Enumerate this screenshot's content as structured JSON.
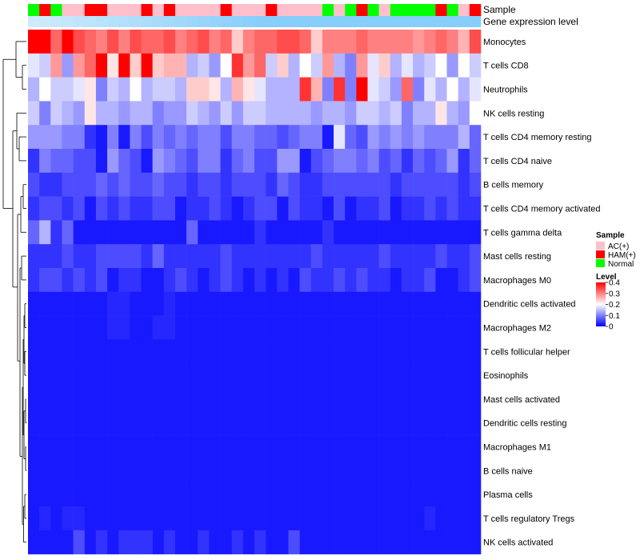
{
  "chart_data": {
    "type": "heatmap",
    "annotation_track_labels": {
      "sample": "Sample",
      "gene_expression": "Gene expression level"
    },
    "row_labels": [
      "Monocytes",
      "T cells CD8",
      "Neutrophils",
      "NK cells resting",
      "T cells CD4 memory resting",
      "T cells CD4 naive",
      "B cells memory",
      "T cells CD4 memory activated",
      "T cells gamma delta",
      "Mast cells resting",
      "Macrophages M0",
      "Dendritic cells activated",
      "Macrophages M2",
      "T cells follicular helper",
      "Eosinophils",
      "Mast cells activated",
      "Dendritic cells resting",
      "Macrophages M1",
      "B cells naive",
      "Plasma cells",
      "T cells regulatory  Tregs",
      "NK cells activated"
    ],
    "sample_groups": [
      "Normal",
      "HAM(+)",
      "Normal",
      "AC(+)",
      "AC(+)",
      "HAM(+)",
      "HAM(+)",
      "AC(+)",
      "AC(+)",
      "AC(+)",
      "HAM(+)",
      "AC(+)",
      "HAM(+)",
      "AC(+)",
      "AC(+)",
      "AC(+)",
      "AC(+)",
      "HAM(+)",
      "AC(+)",
      "AC(+)",
      "AC(+)",
      "HAM(+)",
      "AC(+)",
      "AC(+)",
      "AC(+)",
      "AC(+)",
      "Normal",
      "AC(+)",
      "Normal",
      "HAM(+)",
      "Normal",
      "AC(+)",
      "Normal",
      "Normal",
      "Normal",
      "Normal",
      "HAM(+)",
      "Normal",
      "AC(+)",
      "HAM(+)"
    ],
    "values": [
      [
        0.4,
        0.4,
        0.32,
        0.4,
        0.34,
        0.32,
        0.3,
        0.34,
        0.3,
        0.34,
        0.32,
        0.32,
        0.34,
        0.3,
        0.32,
        0.34,
        0.3,
        0.32,
        0.24,
        0.3,
        0.32,
        0.32,
        0.34,
        0.34,
        0.32,
        0.24,
        0.3,
        0.3,
        0.3,
        0.32,
        0.3,
        0.3,
        0.3,
        0.3,
        0.28,
        0.3,
        0.32,
        0.3,
        0.26,
        0.34
      ],
      [
        0.18,
        0.16,
        0.28,
        0.12,
        0.28,
        0.32,
        0.4,
        0.22,
        0.4,
        0.24,
        0.4,
        0.24,
        0.26,
        0.26,
        0.14,
        0.16,
        0.12,
        0.2,
        0.36,
        0.28,
        0.32,
        0.16,
        0.24,
        0.14,
        0.2,
        0.16,
        0.28,
        0.14,
        0.1,
        0.28,
        0.18,
        0.24,
        0.14,
        0.18,
        0.14,
        0.16,
        0.2,
        0.12,
        0.2,
        0.16
      ],
      [
        0.14,
        0.2,
        0.16,
        0.16,
        0.18,
        0.22,
        0.1,
        0.16,
        0.14,
        0.2,
        0.14,
        0.16,
        0.16,
        0.14,
        0.24,
        0.24,
        0.22,
        0.14,
        0.26,
        0.22,
        0.18,
        0.14,
        0.14,
        0.14,
        0.36,
        0.26,
        0.1,
        0.36,
        0.1,
        0.42,
        0.18,
        0.16,
        0.12,
        0.32,
        0.1,
        0.18,
        0.14,
        0.2,
        0.14,
        0.18
      ],
      [
        0.16,
        0.1,
        0.16,
        0.14,
        0.12,
        0.22,
        0.14,
        0.14,
        0.12,
        0.14,
        0.14,
        0.1,
        0.12,
        0.12,
        0.16,
        0.14,
        0.12,
        0.16,
        0.12,
        0.16,
        0.16,
        0.14,
        0.14,
        0.14,
        0.14,
        0.12,
        0.14,
        0.14,
        0.12,
        0.16,
        0.16,
        0.14,
        0.16,
        0.1,
        0.14,
        0.14,
        0.22,
        0.14,
        0.12,
        0.2
      ],
      [
        0.12,
        0.12,
        0.12,
        0.1,
        0.1,
        0.04,
        0.02,
        0.1,
        0.02,
        0.1,
        0.06,
        0.1,
        0.08,
        0.1,
        0.08,
        0.1,
        0.1,
        0.06,
        0.1,
        0.1,
        0.08,
        0.08,
        0.06,
        0.08,
        0.1,
        0.1,
        0.02,
        0.18,
        0.08,
        0.06,
        0.12,
        0.1,
        0.12,
        0.1,
        0.12,
        0.1,
        0.1,
        0.1,
        0.14,
        0.08
      ],
      [
        0.04,
        0.1,
        0.08,
        0.08,
        0.06,
        0.06,
        0.02,
        0.12,
        0.08,
        0.06,
        0.02,
        0.12,
        0.1,
        0.08,
        0.06,
        0.1,
        0.1,
        0.04,
        0.08,
        0.1,
        0.06,
        0.06,
        0.12,
        0.12,
        0.02,
        0.06,
        0.08,
        0.1,
        0.1,
        0.08,
        0.1,
        0.06,
        0.08,
        0.04,
        0.08,
        0.06,
        0.08,
        0.12,
        0.04,
        0.08
      ],
      [
        0.06,
        0.04,
        0.04,
        0.06,
        0.06,
        0.06,
        0.08,
        0.06,
        0.08,
        0.06,
        0.06,
        0.08,
        0.06,
        0.06,
        0.04,
        0.06,
        0.06,
        0.04,
        0.06,
        0.06,
        0.06,
        0.04,
        0.08,
        0.06,
        0.04,
        0.04,
        0.06,
        0.06,
        0.06,
        0.06,
        0.06,
        0.06,
        0.04,
        0.06,
        0.06,
        0.06,
        0.06,
        0.06,
        0.04,
        0.06
      ],
      [
        0.04,
        0.06,
        0.06,
        0.04,
        0.06,
        0.02,
        0.06,
        0.04,
        0.06,
        0.04,
        0.04,
        0.06,
        0.06,
        0.02,
        0.04,
        0.04,
        0.06,
        0.04,
        0.02,
        0.04,
        0.06,
        0.06,
        0.02,
        0.06,
        0.04,
        0.04,
        0.02,
        0.06,
        0.02,
        0.04,
        0.04,
        0.06,
        0.02,
        0.04,
        0.04,
        0.06,
        0.04,
        0.06,
        0.04,
        0.04
      ],
      [
        0.08,
        0.14,
        0.04,
        0.08,
        0.02,
        0.02,
        0.02,
        0.02,
        0.02,
        0.02,
        0.02,
        0.02,
        0.02,
        0.02,
        0.08,
        0.02,
        0.02,
        0.02,
        0.02,
        0.02,
        0.04,
        0.02,
        0.02,
        0.02,
        0.02,
        0.02,
        0.04,
        0.02,
        0.02,
        0.02,
        0.02,
        0.02,
        0.02,
        0.02,
        0.02,
        0.02,
        0.02,
        0.02,
        0.02,
        0.02
      ],
      [
        0.04,
        0.04,
        0.04,
        0.06,
        0.04,
        0.04,
        0.06,
        0.06,
        0.06,
        0.06,
        0.04,
        0.08,
        0.04,
        0.04,
        0.04,
        0.04,
        0.04,
        0.06,
        0.04,
        0.04,
        0.04,
        0.04,
        0.04,
        0.04,
        0.04,
        0.06,
        0.04,
        0.04,
        0.04,
        0.04,
        0.04,
        0.06,
        0.04,
        0.04,
        0.04,
        0.04,
        0.06,
        0.04,
        0.04,
        0.06
      ],
      [
        0.04,
        0.06,
        0.06,
        0.04,
        0.06,
        0.04,
        0.06,
        0.02,
        0.04,
        0.04,
        0.02,
        0.02,
        0.04,
        0.06,
        0.04,
        0.02,
        0.04,
        0.06,
        0.04,
        0.02,
        0.04,
        0.02,
        0.04,
        0.02,
        0.06,
        0.04,
        0.04,
        0.06,
        0.04,
        0.06,
        0.04,
        0.04,
        0.02,
        0.04,
        0.04,
        0.06,
        0.02,
        0.02,
        0.04,
        0.06
      ],
      [
        0.02,
        0.02,
        0.02,
        0.02,
        0.02,
        0.02,
        0.02,
        0.03,
        0.03,
        0.02,
        0.02,
        0.02,
        0.03,
        0.02,
        0.02,
        0.02,
        0.02,
        0.02,
        0.02,
        0.02,
        0.02,
        0.02,
        0.02,
        0.02,
        0.02,
        0.02,
        0.02,
        0.02,
        0.02,
        0.02,
        0.02,
        0.02,
        0.02,
        0.02,
        0.02,
        0.02,
        0.02,
        0.02,
        0.02,
        0.02
      ],
      [
        0.02,
        0.02,
        0.02,
        0.02,
        0.02,
        0.02,
        0.02,
        0.03,
        0.03,
        0.02,
        0.02,
        0.03,
        0.03,
        0.02,
        0.02,
        0.02,
        0.02,
        0.02,
        0.02,
        0.02,
        0.02,
        0.02,
        0.02,
        0.02,
        0.02,
        0.02,
        0.02,
        0.02,
        0.02,
        0.02,
        0.02,
        0.02,
        0.02,
        0.02,
        0.02,
        0.02,
        0.02,
        0.02,
        0.02,
        0.02
      ],
      [
        0.02,
        0.02,
        0.02,
        0.02,
        0.02,
        0.02,
        0.02,
        0.02,
        0.02,
        0.02,
        0.02,
        0.02,
        0.02,
        0.02,
        0.02,
        0.02,
        0.02,
        0.02,
        0.02,
        0.02,
        0.02,
        0.02,
        0.02,
        0.02,
        0.02,
        0.02,
        0.02,
        0.02,
        0.02,
        0.02,
        0.02,
        0.02,
        0.02,
        0.02,
        0.02,
        0.02,
        0.02,
        0.02,
        0.02,
        0.02
      ],
      [
        0.02,
        0.02,
        0.02,
        0.02,
        0.02,
        0.02,
        0.02,
        0.02,
        0.02,
        0.02,
        0.02,
        0.02,
        0.02,
        0.02,
        0.02,
        0.02,
        0.02,
        0.02,
        0.02,
        0.02,
        0.02,
        0.02,
        0.02,
        0.02,
        0.02,
        0.02,
        0.02,
        0.02,
        0.02,
        0.02,
        0.02,
        0.02,
        0.02,
        0.02,
        0.02,
        0.02,
        0.02,
        0.02,
        0.02,
        0.02
      ],
      [
        0.02,
        0.02,
        0.02,
        0.02,
        0.02,
        0.02,
        0.02,
        0.02,
        0.02,
        0.02,
        0.02,
        0.02,
        0.02,
        0.02,
        0.02,
        0.02,
        0.02,
        0.02,
        0.02,
        0.02,
        0.02,
        0.02,
        0.02,
        0.02,
        0.02,
        0.02,
        0.02,
        0.02,
        0.02,
        0.02,
        0.02,
        0.02,
        0.02,
        0.02,
        0.02,
        0.02,
        0.02,
        0.02,
        0.02,
        0.02
      ],
      [
        0.02,
        0.02,
        0.02,
        0.02,
        0.02,
        0.02,
        0.02,
        0.02,
        0.02,
        0.02,
        0.02,
        0.02,
        0.02,
        0.02,
        0.02,
        0.02,
        0.02,
        0.02,
        0.02,
        0.02,
        0.02,
        0.02,
        0.02,
        0.02,
        0.02,
        0.02,
        0.02,
        0.02,
        0.02,
        0.02,
        0.02,
        0.02,
        0.02,
        0.02,
        0.02,
        0.02,
        0.02,
        0.02,
        0.02,
        0.02
      ],
      [
        0.02,
        0.02,
        0.02,
        0.02,
        0.02,
        0.02,
        0.02,
        0.02,
        0.02,
        0.02,
        0.02,
        0.02,
        0.02,
        0.02,
        0.02,
        0.02,
        0.02,
        0.02,
        0.02,
        0.02,
        0.02,
        0.02,
        0.02,
        0.02,
        0.02,
        0.02,
        0.02,
        0.02,
        0.02,
        0.02,
        0.02,
        0.02,
        0.02,
        0.02,
        0.02,
        0.02,
        0.02,
        0.02,
        0.02,
        0.02
      ],
      [
        0.02,
        0.02,
        0.02,
        0.02,
        0.02,
        0.02,
        0.02,
        0.02,
        0.02,
        0.02,
        0.02,
        0.02,
        0.02,
        0.02,
        0.02,
        0.02,
        0.02,
        0.02,
        0.02,
        0.02,
        0.02,
        0.02,
        0.02,
        0.02,
        0.02,
        0.02,
        0.02,
        0.02,
        0.02,
        0.02,
        0.02,
        0.02,
        0.02,
        0.02,
        0.02,
        0.02,
        0.02,
        0.02,
        0.02,
        0.02
      ],
      [
        0.02,
        0.02,
        0.02,
        0.02,
        0.02,
        0.02,
        0.02,
        0.02,
        0.02,
        0.02,
        0.02,
        0.02,
        0.02,
        0.02,
        0.02,
        0.02,
        0.02,
        0.02,
        0.02,
        0.02,
        0.02,
        0.02,
        0.02,
        0.02,
        0.02,
        0.02,
        0.02,
        0.02,
        0.02,
        0.02,
        0.02,
        0.02,
        0.02,
        0.02,
        0.02,
        0.02,
        0.02,
        0.02,
        0.02,
        0.02
      ],
      [
        0.02,
        0.03,
        0.02,
        0.03,
        0.03,
        0.02,
        0.02,
        0.02,
        0.02,
        0.02,
        0.02,
        0.02,
        0.02,
        0.02,
        0.02,
        0.02,
        0.02,
        0.02,
        0.02,
        0.02,
        0.02,
        0.02,
        0.02,
        0.02,
        0.02,
        0.02,
        0.02,
        0.02,
        0.02,
        0.02,
        0.02,
        0.02,
        0.02,
        0.02,
        0.02,
        0.03,
        0.02,
        0.02,
        0.02,
        0.02
      ],
      [
        0.02,
        0.02,
        0.02,
        0.02,
        0.06,
        0.02,
        0.04,
        0.02,
        0.04,
        0.04,
        0.04,
        0.02,
        0.04,
        0.02,
        0.02,
        0.04,
        0.02,
        0.02,
        0.04,
        0.02,
        0.04,
        0.02,
        0.02,
        0.06,
        0.02,
        0.02,
        0.02,
        0.02,
        0.02,
        0.02,
        0.02,
        0.02,
        0.02,
        0.02,
        0.02,
        0.02,
        0.02,
        0.02,
        0.02,
        0.02
      ]
    ],
    "gene_expression_colors": [
      "#87cefa",
      "#d6eefb"
    ],
    "legend": {
      "sample": {
        "title": "Sample",
        "entries": [
          {
            "label": "AC(+)",
            "color": "#ffc0cb"
          },
          {
            "label": "HAM(+)",
            "color": "#ff0000"
          },
          {
            "label": "Normal",
            "color": "#00ff00"
          }
        ]
      },
      "level": {
        "title": "Level",
        "ticks": [
          {
            "value": 0.4,
            "label": "0.4"
          },
          {
            "value": 0.3,
            "label": "0.3"
          },
          {
            "value": 0.2,
            "label": "0.2"
          },
          {
            "value": 0.1,
            "label": "0.1"
          },
          {
            "value": 0,
            "label": "0"
          }
        ]
      }
    },
    "color_scale": {
      "min": 0,
      "mid": 0.2,
      "max": 0.4,
      "low": "#0000ff",
      "midcolor": "#ffffff",
      "high": "#ff0000"
    },
    "dendrogram": {
      "side": "left"
    }
  }
}
